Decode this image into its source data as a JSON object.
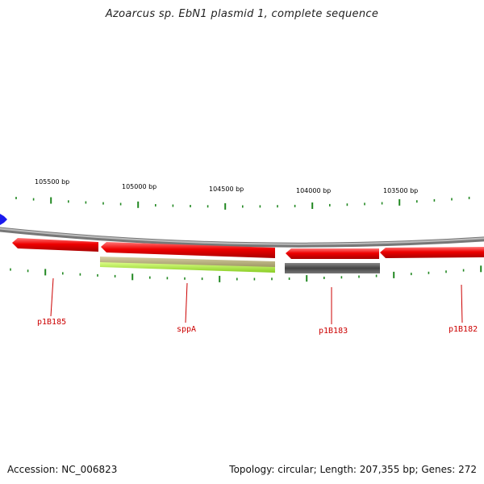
{
  "title": "Azoarcus sp. EbN1 plasmid 1, complete sequence",
  "accession_text": "Accession: NC_006823",
  "summary_text": "Topology: circular; Length: 207,355 bp; Genes: 272",
  "position_labels": [
    "105500 bp",
    "105000 bp",
    "104500 bp",
    "104000 bp",
    "103500 bp"
  ],
  "genes": [
    {
      "name": "p1B185",
      "strand": "reverse",
      "color": "#ee0000"
    },
    {
      "name": "sppA",
      "strand": "reverse",
      "color": "#ee0000"
    },
    {
      "name": "p1B183",
      "strand": "reverse",
      "color": "#ee0000"
    },
    {
      "name": "p1B182",
      "strand": "reverse",
      "color": "#ee0000"
    }
  ],
  "annotation_colors": {
    "olive": "#b8b078",
    "lime": "#aaee33",
    "gray": "#555555"
  },
  "colors": {
    "backbone": "#888888",
    "tick": "#228822",
    "label": "#cc0000",
    "origin_marker": "#1a1aee"
  }
}
